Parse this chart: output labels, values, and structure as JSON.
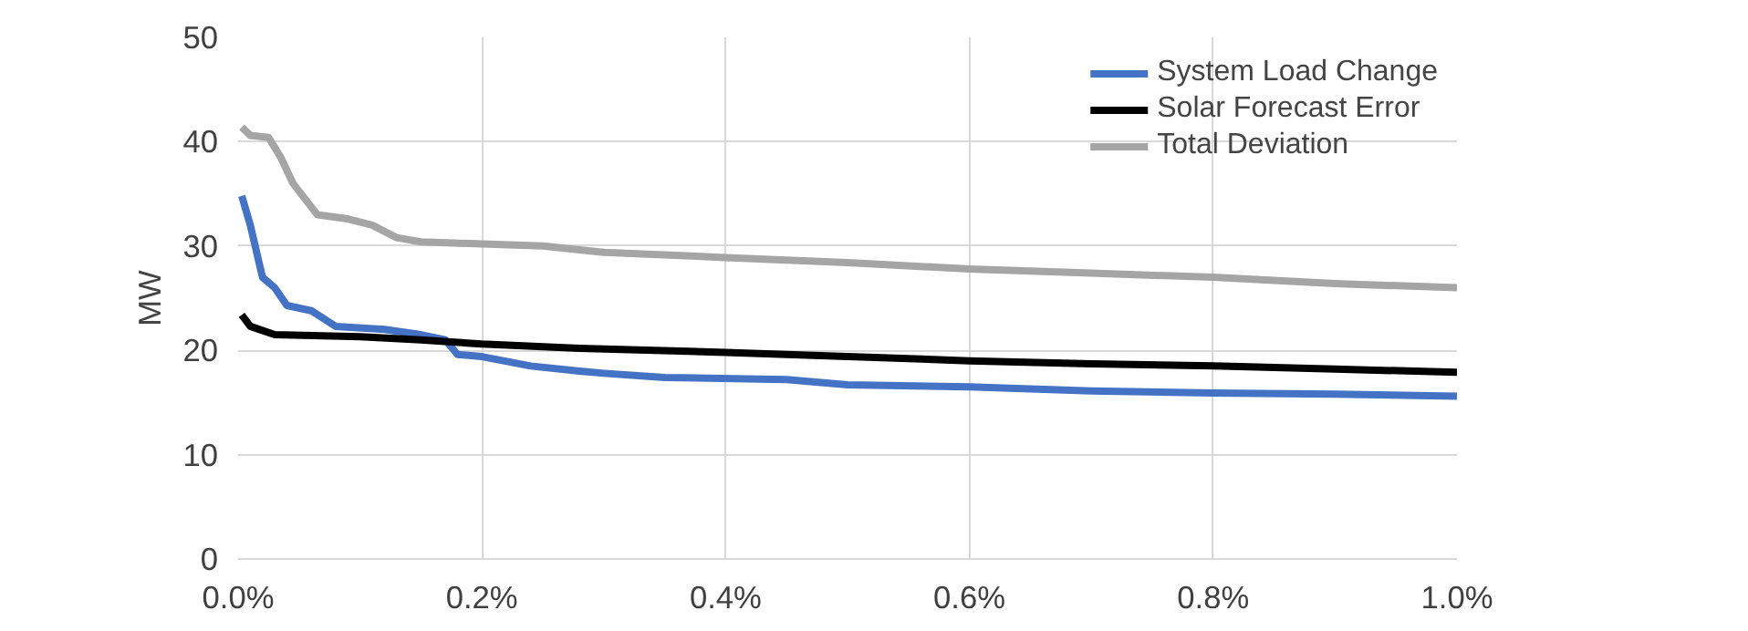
{
  "chart_data": {
    "type": "line",
    "ylabel": "MW",
    "xlim": [
      0,
      1.0
    ],
    "ylim": [
      0,
      50
    ],
    "xticks": [
      {
        "value": 0,
        "label": "0.0%"
      },
      {
        "value": 0.2,
        "label": "0.2%"
      },
      {
        "value": 0.4,
        "label": "0.4%"
      },
      {
        "value": 0.6,
        "label": "0.6%"
      },
      {
        "value": 0.8,
        "label": "0.8%"
      },
      {
        "value": 1.0,
        "label": "1.0%"
      }
    ],
    "yticks": [
      0,
      10,
      20,
      30,
      40,
      50
    ],
    "grid": true,
    "legend": "top right",
    "line_style": "solid",
    "marker": "none",
    "series": [
      {
        "name": "System Load Change",
        "color": "#4472c4",
        "x": [
          0.003,
          0.01,
          0.02,
          0.03,
          0.04,
          0.06,
          0.08,
          0.12,
          0.15,
          0.17,
          0.18,
          0.2,
          0.24,
          0.28,
          0.3,
          0.35,
          0.45,
          0.5,
          0.6,
          0.7,
          0.8,
          0.9,
          1.0
        ],
        "values": [
          34.8,
          32,
          27,
          26,
          24.3,
          23.8,
          22.3,
          22,
          21.5,
          21,
          19.6,
          19.4,
          18.5,
          18,
          17.8,
          17.4,
          17.2,
          16.7,
          16.5,
          16.1,
          15.9,
          15.8,
          15.6
        ]
      },
      {
        "name": "Solar Forecast Error",
        "color": "#000000",
        "x": [
          0.003,
          0.01,
          0.03,
          0.1,
          0.15,
          0.2,
          0.28,
          0.4,
          0.5,
          0.6,
          0.7,
          0.8,
          0.9,
          1.0
        ],
        "values": [
          23.4,
          22.3,
          21.5,
          21.3,
          21,
          20.6,
          20.2,
          19.8,
          19.4,
          19.0,
          18.7,
          18.5,
          18.2,
          17.9
        ]
      },
      {
        "name": "Total Deviation",
        "color": "#a5a5a5",
        "x": [
          0.003,
          0.01,
          0.025,
          0.035,
          0.045,
          0.065,
          0.09,
          0.11,
          0.13,
          0.15,
          0.2,
          0.25,
          0.3,
          0.4,
          0.5,
          0.6,
          0.7,
          0.8,
          0.9,
          1.0
        ],
        "values": [
          41.4,
          40.6,
          40.4,
          38.5,
          36,
          33,
          32.6,
          32,
          30.8,
          30.4,
          30.2,
          30,
          29.4,
          28.9,
          28.4,
          27.8,
          27.4,
          27,
          26.4,
          26
        ]
      }
    ]
  }
}
